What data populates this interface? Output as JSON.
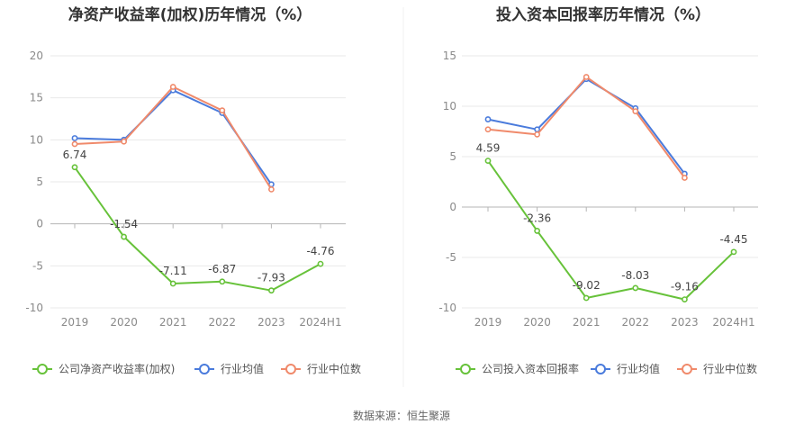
{
  "footer": {
    "source": "数据来源：恒生聚源"
  },
  "chart_data": [
    {
      "type": "line",
      "title": "净资产收益率(加权)历年情况（%）",
      "categories": [
        "2019",
        "2020",
        "2021",
        "2022",
        "2023",
        "2024H1"
      ],
      "ylim": [
        -10,
        20
      ],
      "yticks": [
        -10,
        -5,
        0,
        5,
        10,
        15,
        20
      ],
      "grid": true,
      "legend_position": "bottom",
      "series": [
        {
          "name": "公司净资产收益率(加权)",
          "color": "#67c23a",
          "values": [
            6.74,
            -1.54,
            -7.11,
            -6.87,
            -7.93,
            -4.76
          ],
          "data_labels": [
            "6.74",
            "-1.54",
            "-7.11",
            "-6.87",
            "-7.93",
            "-4.76"
          ]
        },
        {
          "name": "行业均值",
          "color": "#4a7bdc",
          "values": [
            10.2,
            10.0,
            15.9,
            13.2,
            4.7,
            null
          ]
        },
        {
          "name": "行业中位数",
          "color": "#f08a6b",
          "values": [
            9.5,
            9.8,
            16.3,
            13.5,
            4.1,
            null
          ]
        }
      ]
    },
    {
      "type": "line",
      "title": "投入资本回报率历年情况（%）",
      "categories": [
        "2019",
        "2020",
        "2021",
        "2022",
        "2023",
        "2024H1"
      ],
      "ylim": [
        -10,
        15
      ],
      "yticks": [
        -10,
        -5,
        0,
        5,
        10,
        15
      ],
      "grid": true,
      "legend_position": "bottom",
      "series": [
        {
          "name": "公司投入资本回报率",
          "color": "#67c23a",
          "values": [
            4.59,
            -2.36,
            -9.02,
            -8.03,
            -9.16,
            -4.45
          ],
          "data_labels": [
            "4.59",
            "-2.36",
            "-9.02",
            "-8.03",
            "-9.16",
            "-4.45"
          ]
        },
        {
          "name": "行业均值",
          "color": "#4a7bdc",
          "values": [
            8.7,
            7.7,
            12.7,
            9.8,
            3.3,
            null
          ]
        },
        {
          "name": "行业中位数",
          "color": "#f08a6b",
          "values": [
            7.7,
            7.2,
            12.9,
            9.5,
            2.9,
            null
          ]
        }
      ]
    }
  ]
}
